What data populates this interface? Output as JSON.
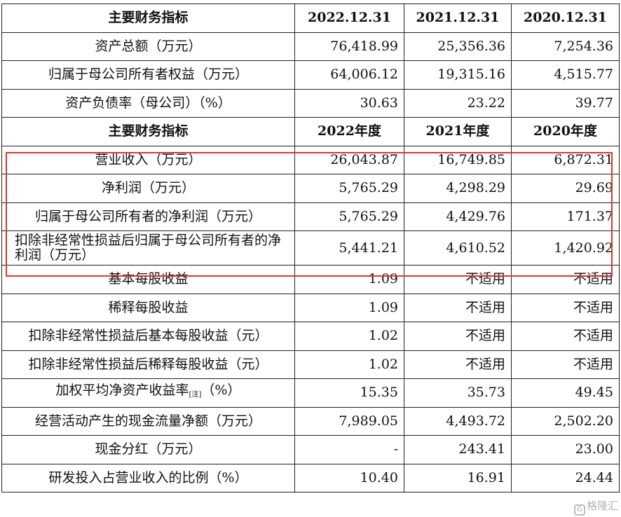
{
  "table": {
    "header1": {
      "label": "主要财务指标",
      "cols": [
        "2022.12.31",
        "2021.12.31",
        "2020.12.31"
      ]
    },
    "group1": [
      {
        "label": "资产总额（万元）",
        "values": [
          "76,418.99",
          "25,356.36",
          "7,254.36"
        ]
      },
      {
        "label": "归属于母公司所有者权益（万元）",
        "values": [
          "64,006.12",
          "19,315.16",
          "4,515.77"
        ]
      },
      {
        "label": "资产负债率（母公司）（%）",
        "values": [
          "30.63",
          "23.22",
          "39.77"
        ]
      }
    ],
    "header2": {
      "label": "主要财务指标",
      "cols": [
        "2022年度",
        "2021年度",
        "2020年度"
      ]
    },
    "group2": [
      {
        "label": "营业收入（万元）",
        "values": [
          "26,043.87",
          "16,749.85",
          "6,872.31"
        ]
      },
      {
        "label": "净利润（万元）",
        "values": [
          "5,765.29",
          "4,298.29",
          "29.69"
        ]
      },
      {
        "label": "归属于母公司所有者的净利润（万元）",
        "values": [
          "5,765.29",
          "4,429.76",
          "171.37"
        ]
      },
      {
        "label": "扣除非经常性损益后归属于母公司所有者的净利润（万元）",
        "values": [
          "5,441.21",
          "4,610.52",
          "1,420.92"
        ]
      },
      {
        "label": "基本每股收益",
        "values": [
          "1.09",
          "不适用",
          "不适用"
        ]
      },
      {
        "label": "稀释每股收益",
        "values": [
          "1.09",
          "不适用",
          "不适用"
        ]
      },
      {
        "label": "扣除非经常性损益后基本每股收益（元）",
        "values": [
          "1.02",
          "不适用",
          "不适用"
        ]
      },
      {
        "label": "扣除非经常性损益后稀释每股收益（元）",
        "values": [
          "1.02",
          "不适用",
          "不适用"
        ]
      },
      {
        "label": "加权平均净资产收益率",
        "note": "[注]",
        "suffix": "（%）",
        "values": [
          "15.35",
          "35.73",
          "49.45"
        ]
      },
      {
        "label": "经营活动产生的现金流量净额（万元）",
        "values": [
          "7,989.05",
          "4,493.72",
          "2,502.20"
        ]
      },
      {
        "label": "现金分红（万元）",
        "values": [
          "-",
          "243.41",
          "23.00"
        ]
      },
      {
        "label": "研发投入占营业收入的比例（%）",
        "values": [
          "10.40",
          "16.91",
          "24.44"
        ]
      }
    ]
  },
  "watermark": {
    "text": "格隆汇",
    "logo": "G"
  },
  "colors": {
    "highlight_border": "#d63a2f",
    "grid": "#222222"
  }
}
